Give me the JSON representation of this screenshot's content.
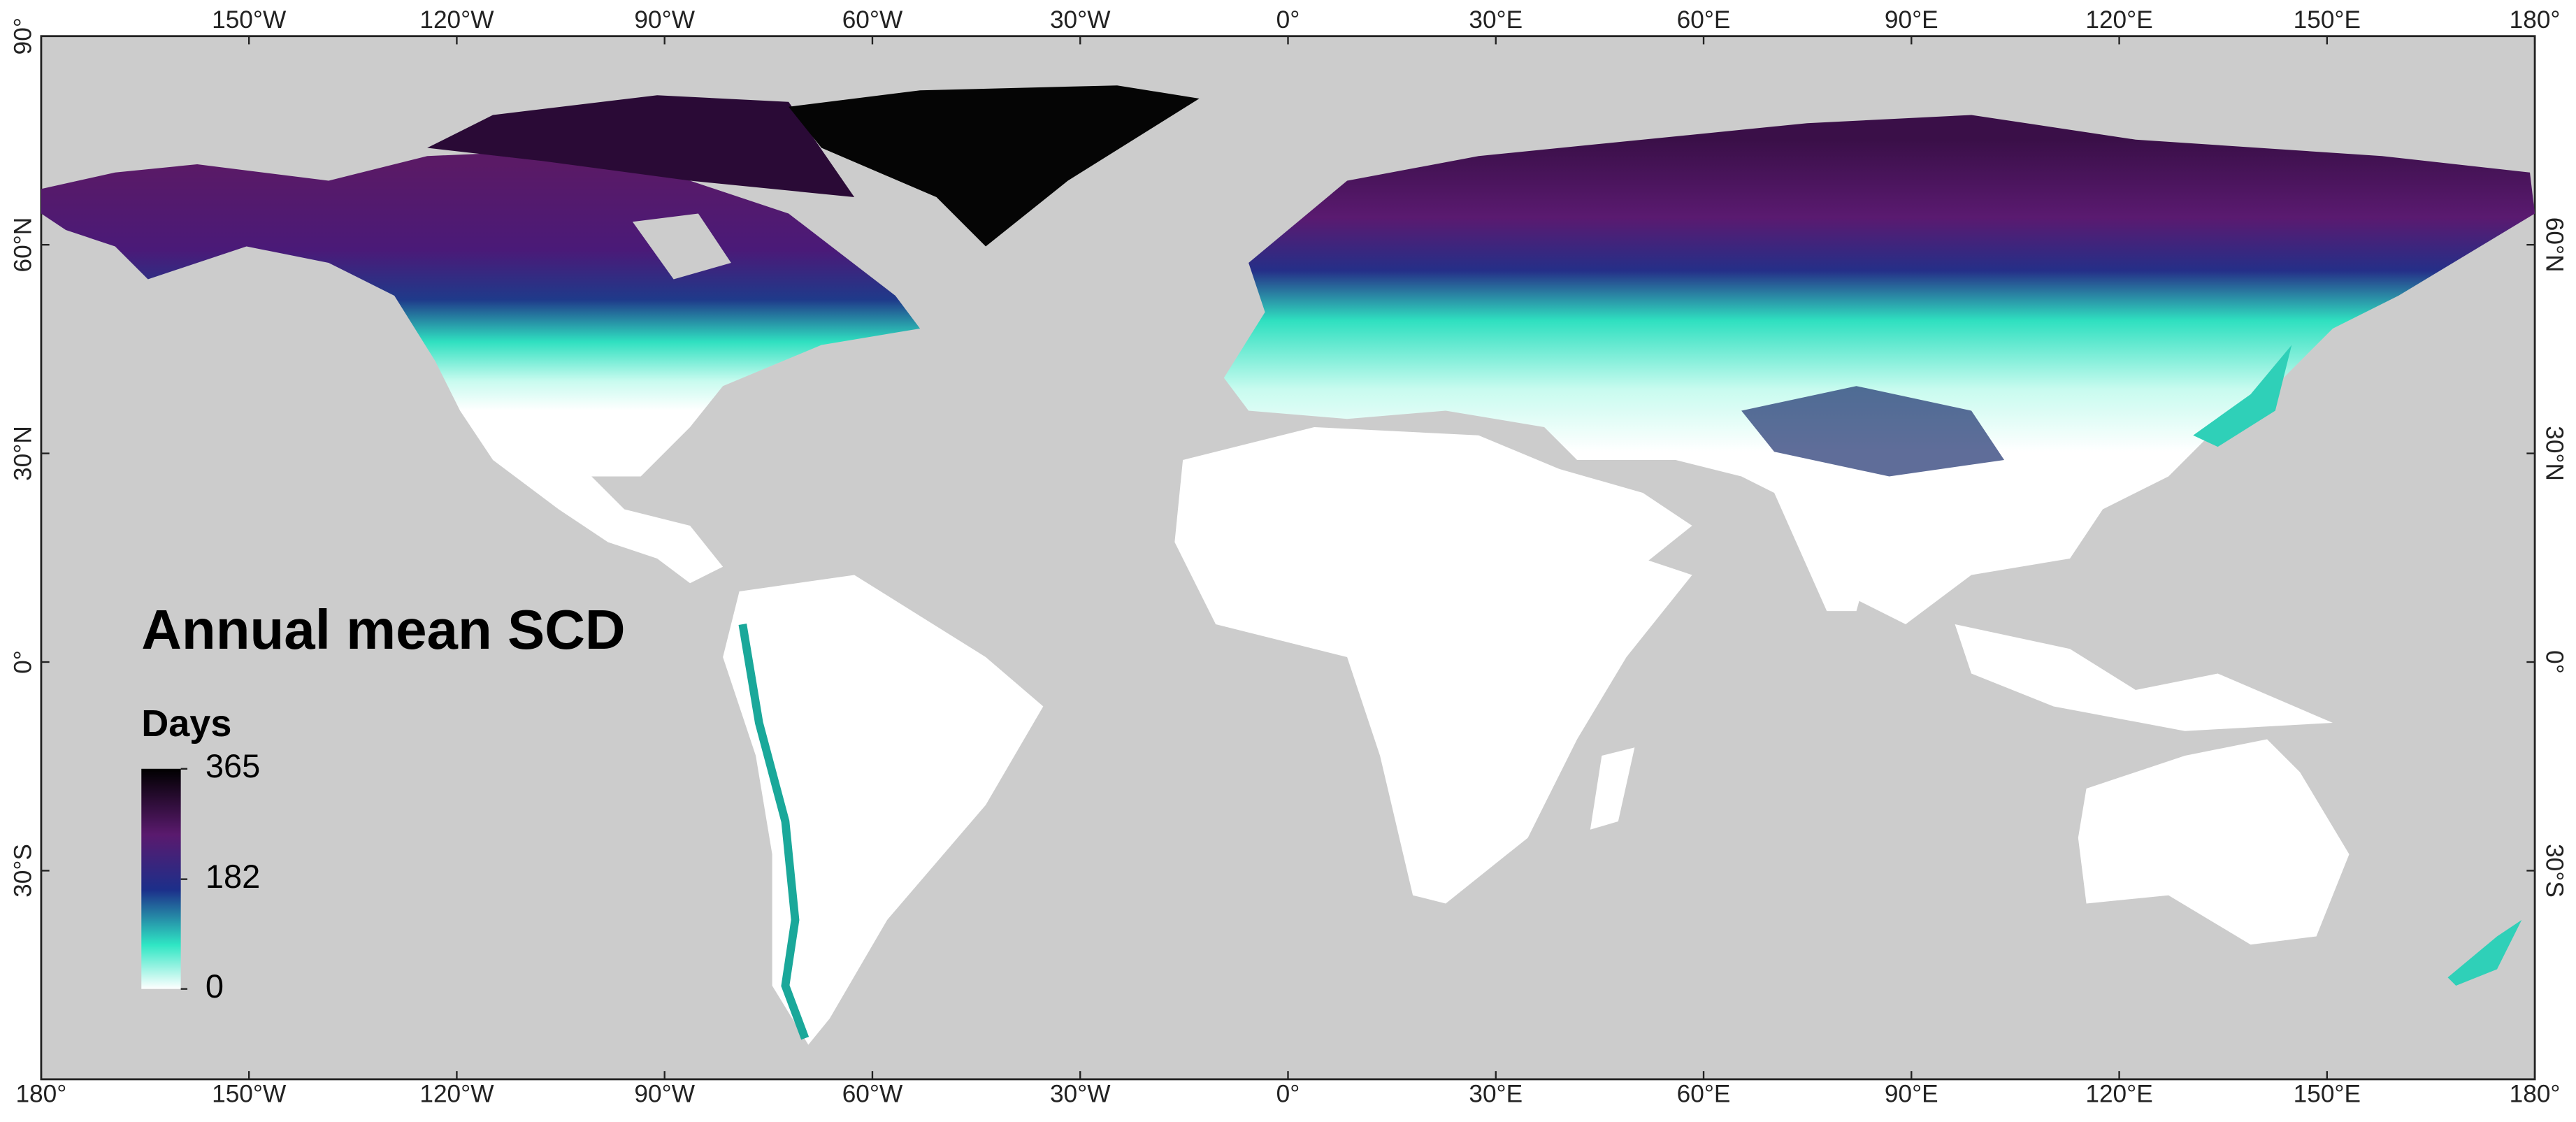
{
  "map": {
    "title": "Annual mean SCD",
    "lon_range": [
      -180,
      180
    ],
    "lat_range": [
      -60,
      90
    ],
    "legend": {
      "title": "Days",
      "ticks": [
        365,
        182,
        0
      ]
    },
    "top_ticks": [
      {
        "value": -150,
        "label": "150°W"
      },
      {
        "value": -120,
        "label": "120°W"
      },
      {
        "value": -90,
        "label": "90°W"
      },
      {
        "value": -60,
        "label": "60°W"
      },
      {
        "value": -30,
        "label": "30°W"
      },
      {
        "value": 0,
        "label": "0°"
      },
      {
        "value": 30,
        "label": "30°E"
      },
      {
        "value": 60,
        "label": "60°E"
      },
      {
        "value": 90,
        "label": "90°E"
      },
      {
        "value": 120,
        "label": "120°E"
      },
      {
        "value": 150,
        "label": "150°E"
      },
      {
        "value": 180,
        "label": "180°"
      }
    ],
    "bottom_ticks": [
      {
        "value": -180,
        "label": "180°"
      },
      {
        "value": -150,
        "label": "150°W"
      },
      {
        "value": -120,
        "label": "120°W"
      },
      {
        "value": -90,
        "label": "90°W"
      },
      {
        "value": -60,
        "label": "60°W"
      },
      {
        "value": -30,
        "label": "30°W"
      },
      {
        "value": 0,
        "label": "0°"
      },
      {
        "value": 30,
        "label": "30°E"
      },
      {
        "value": 60,
        "label": "60°E"
      },
      {
        "value": 90,
        "label": "90°E"
      },
      {
        "value": 120,
        "label": "120°E"
      },
      {
        "value": 150,
        "label": "150°E"
      },
      {
        "value": 180,
        "label": "180°"
      }
    ],
    "left_ticks": [
      {
        "value": 90,
        "label": "90°"
      },
      {
        "value": 60,
        "label": "60°N"
      },
      {
        "value": 30,
        "label": "30°N"
      },
      {
        "value": 0,
        "label": "0°"
      },
      {
        "value": -30,
        "label": "30°S"
      }
    ],
    "right_ticks": [
      {
        "value": 60,
        "label": "60°N"
      },
      {
        "value": 30,
        "label": "30°N"
      },
      {
        "value": 0,
        "label": "0°"
      },
      {
        "value": -30,
        "label": "30°S"
      }
    ]
  }
}
